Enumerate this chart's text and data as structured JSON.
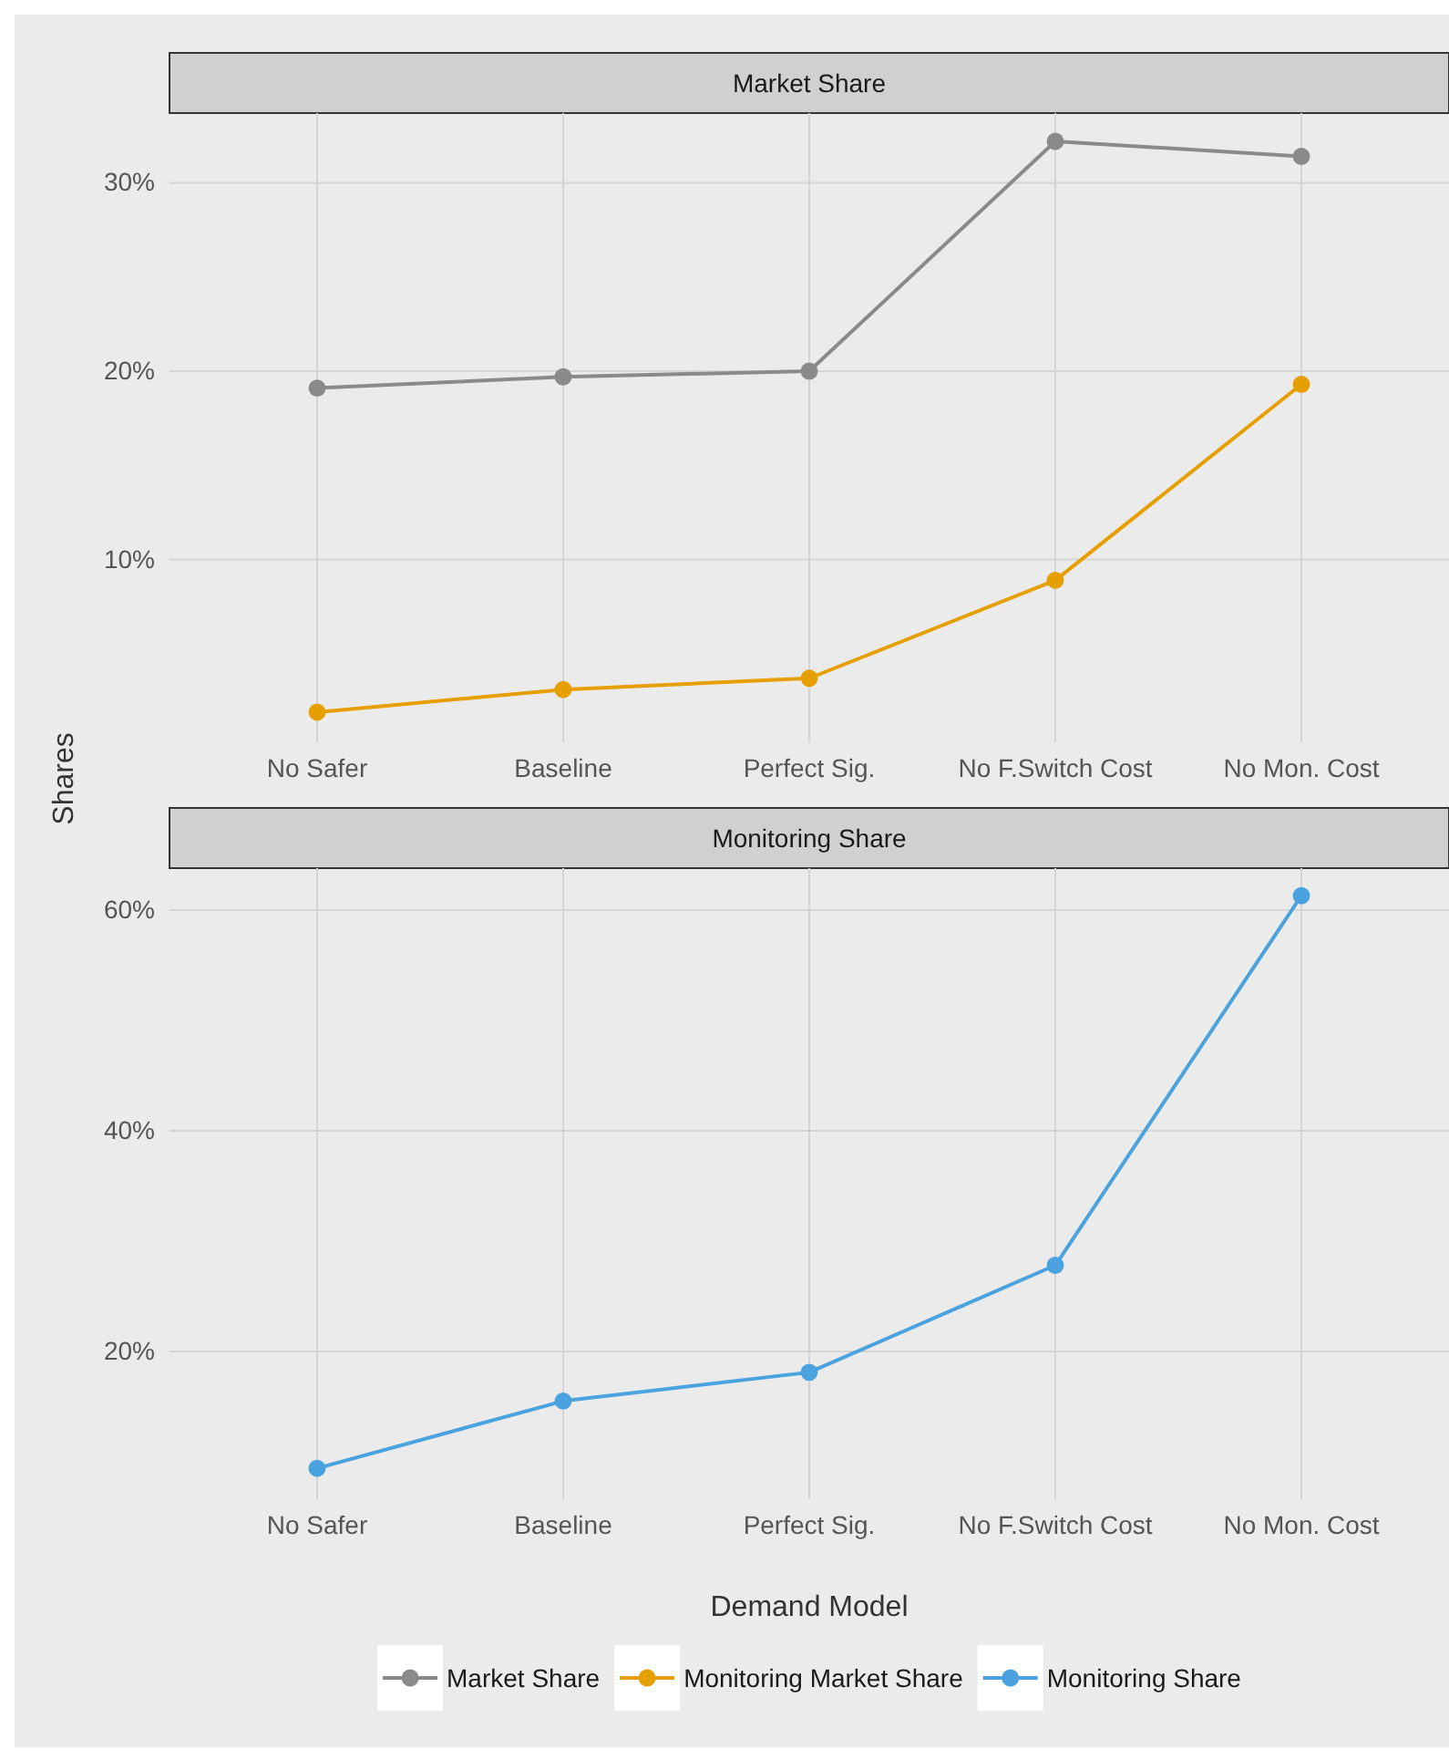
{
  "chart_data": [
    {
      "type": "line",
      "title": "Market Share",
      "ylabel": "Shares",
      "categories": [
        "No Safer",
        "Baseline",
        "Perfect Sig.",
        "No F.Switch Cost",
        "No Mon. Cost"
      ],
      "ylim": [
        0.3,
        33.7
      ],
      "yticks": [
        {
          "value": 10,
          "label": "10%"
        },
        {
          "value": 20,
          "label": "20%"
        },
        {
          "value": 30,
          "label": "30%"
        }
      ],
      "grid": true,
      "marker": "circle",
      "legend": "bottom",
      "series": [
        {
          "name": "Market Share",
          "color": "#8a8a8a",
          "values": [
            19.1,
            19.7,
            20.0,
            32.2,
            31.4
          ]
        },
        {
          "name": "Monitoring Market Share",
          "color": "#e69f00",
          "values": [
            1.9,
            3.1,
            3.7,
            8.9,
            19.3
          ]
        }
      ]
    },
    {
      "type": "line",
      "title": "Monitoring Share",
      "xlabel": "Demand Model",
      "categories": [
        "No Safer",
        "Baseline",
        "Perfect Sig.",
        "No F.Switch Cost",
        "No Mon. Cost"
      ],
      "ylim": [
        6.6,
        63.8
      ],
      "yticks": [
        {
          "value": 20,
          "label": "20%"
        },
        {
          "value": 40,
          "label": "40%"
        },
        {
          "value": 60,
          "label": "60%"
        }
      ],
      "grid": true,
      "marker": "circle",
      "legend": "bottom",
      "series": [
        {
          "name": "Monitoring Share",
          "color": "#4aa3df",
          "values": [
            9.4,
            15.5,
            18.1,
            27.8,
            61.3
          ]
        }
      ]
    }
  ]
}
